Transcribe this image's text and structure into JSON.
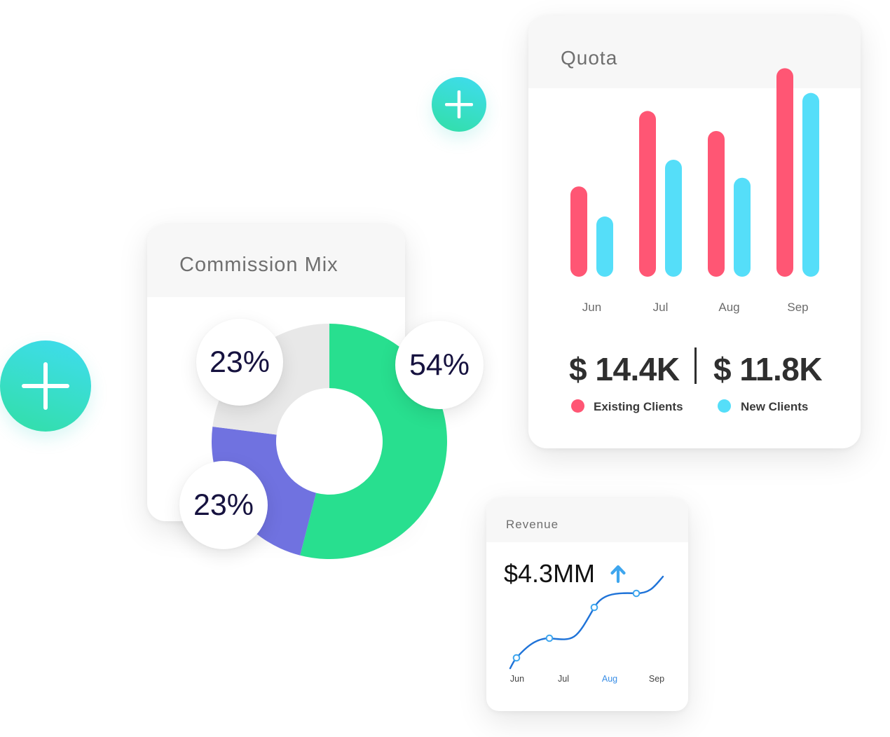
{
  "colors": {
    "accent_gradient_start": "#3fdcf0",
    "accent_gradient_end": "#32dfa6",
    "existing_clients": "#ff5674",
    "new_clients": "#55def9",
    "commission_green": "#28df8f",
    "commission_purple": "#7072e0",
    "commission_gray": "#e8e8e8",
    "revenue_line": "#1f73d8",
    "revenue_highlight": "#3ea6ee"
  },
  "icons": {
    "plus_top": "plus-icon",
    "plus_left": "plus-icon",
    "revenue_arrow": "arrow-up-icon"
  },
  "commission": {
    "title": "Commission Mix",
    "labels": [
      "23%",
      "23%",
      "54%"
    ]
  },
  "quota": {
    "title": "Quota",
    "existing_value": "$ 14.4K",
    "new_value": "$ 11.8K",
    "legend_existing": "Existing Clients",
    "legend_new": "New Clients"
  },
  "revenue": {
    "title": "Revenue",
    "value": "$4.3MM",
    "highlighted_month": "Aug"
  },
  "chart_data": [
    {
      "type": "pie",
      "title": "Commission Mix",
      "categories": [
        "",
        "",
        ""
      ],
      "values": [
        54,
        23,
        23
      ],
      "labels": [
        "54%",
        "23%",
        "23%"
      ],
      "colors": [
        "#28df8f",
        "#7072e0",
        "#e8e8e8"
      ],
      "donut": true
    },
    {
      "type": "bar",
      "title": "Quota",
      "categories": [
        "Jun",
        "Jul",
        "Aug",
        "Sep"
      ],
      "series": [
        {
          "name": "Existing Clients",
          "values": [
            110,
            223,
            193,
            287
          ],
          "color": "#ff5674"
        },
        {
          "name": "New Clients",
          "values": [
            65,
            150,
            123,
            250
          ],
          "color": "#55def9"
        }
      ],
      "ylim": [
        0,
        300
      ],
      "grid": false,
      "legend": "bottom"
    },
    {
      "type": "line",
      "title": "Revenue",
      "categories": [
        "Jun",
        "Jul",
        "Aug",
        "Sep"
      ],
      "series": [
        {
          "name": "",
          "values": [
            1.0,
            1.7,
            2.8,
            3.3
          ]
        }
      ],
      "ylim": [
        0.5,
        4.0
      ],
      "grid": false
    }
  ]
}
